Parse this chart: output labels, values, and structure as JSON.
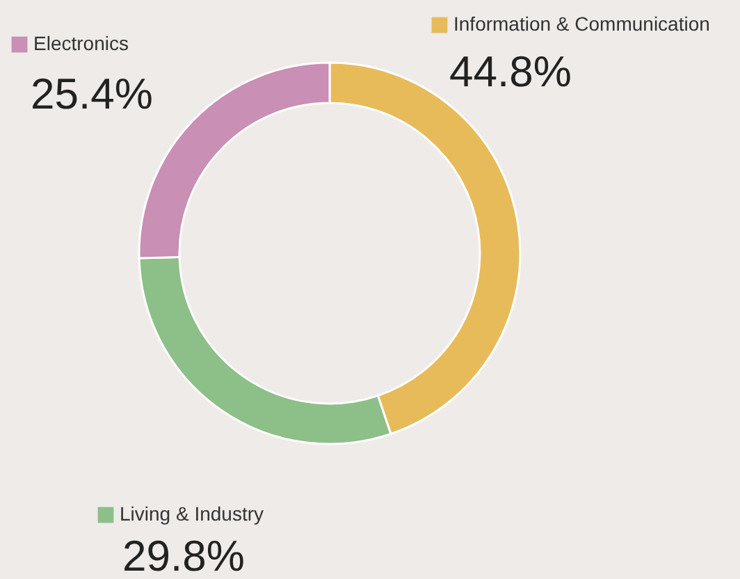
{
  "chart_data": {
    "type": "donut",
    "categories": [
      "Information & Communication",
      "Living & Industry",
      "Electronics"
    ],
    "values": [
      44.8,
      29.8,
      25.4
    ],
    "colors": [
      "#e8bb5a",
      "#8dbf88",
      "#c98fb4"
    ],
    "value_labels": [
      "44.8%",
      "29.8%",
      "25.4%"
    ],
    "legend": "bottom right"
  }
}
